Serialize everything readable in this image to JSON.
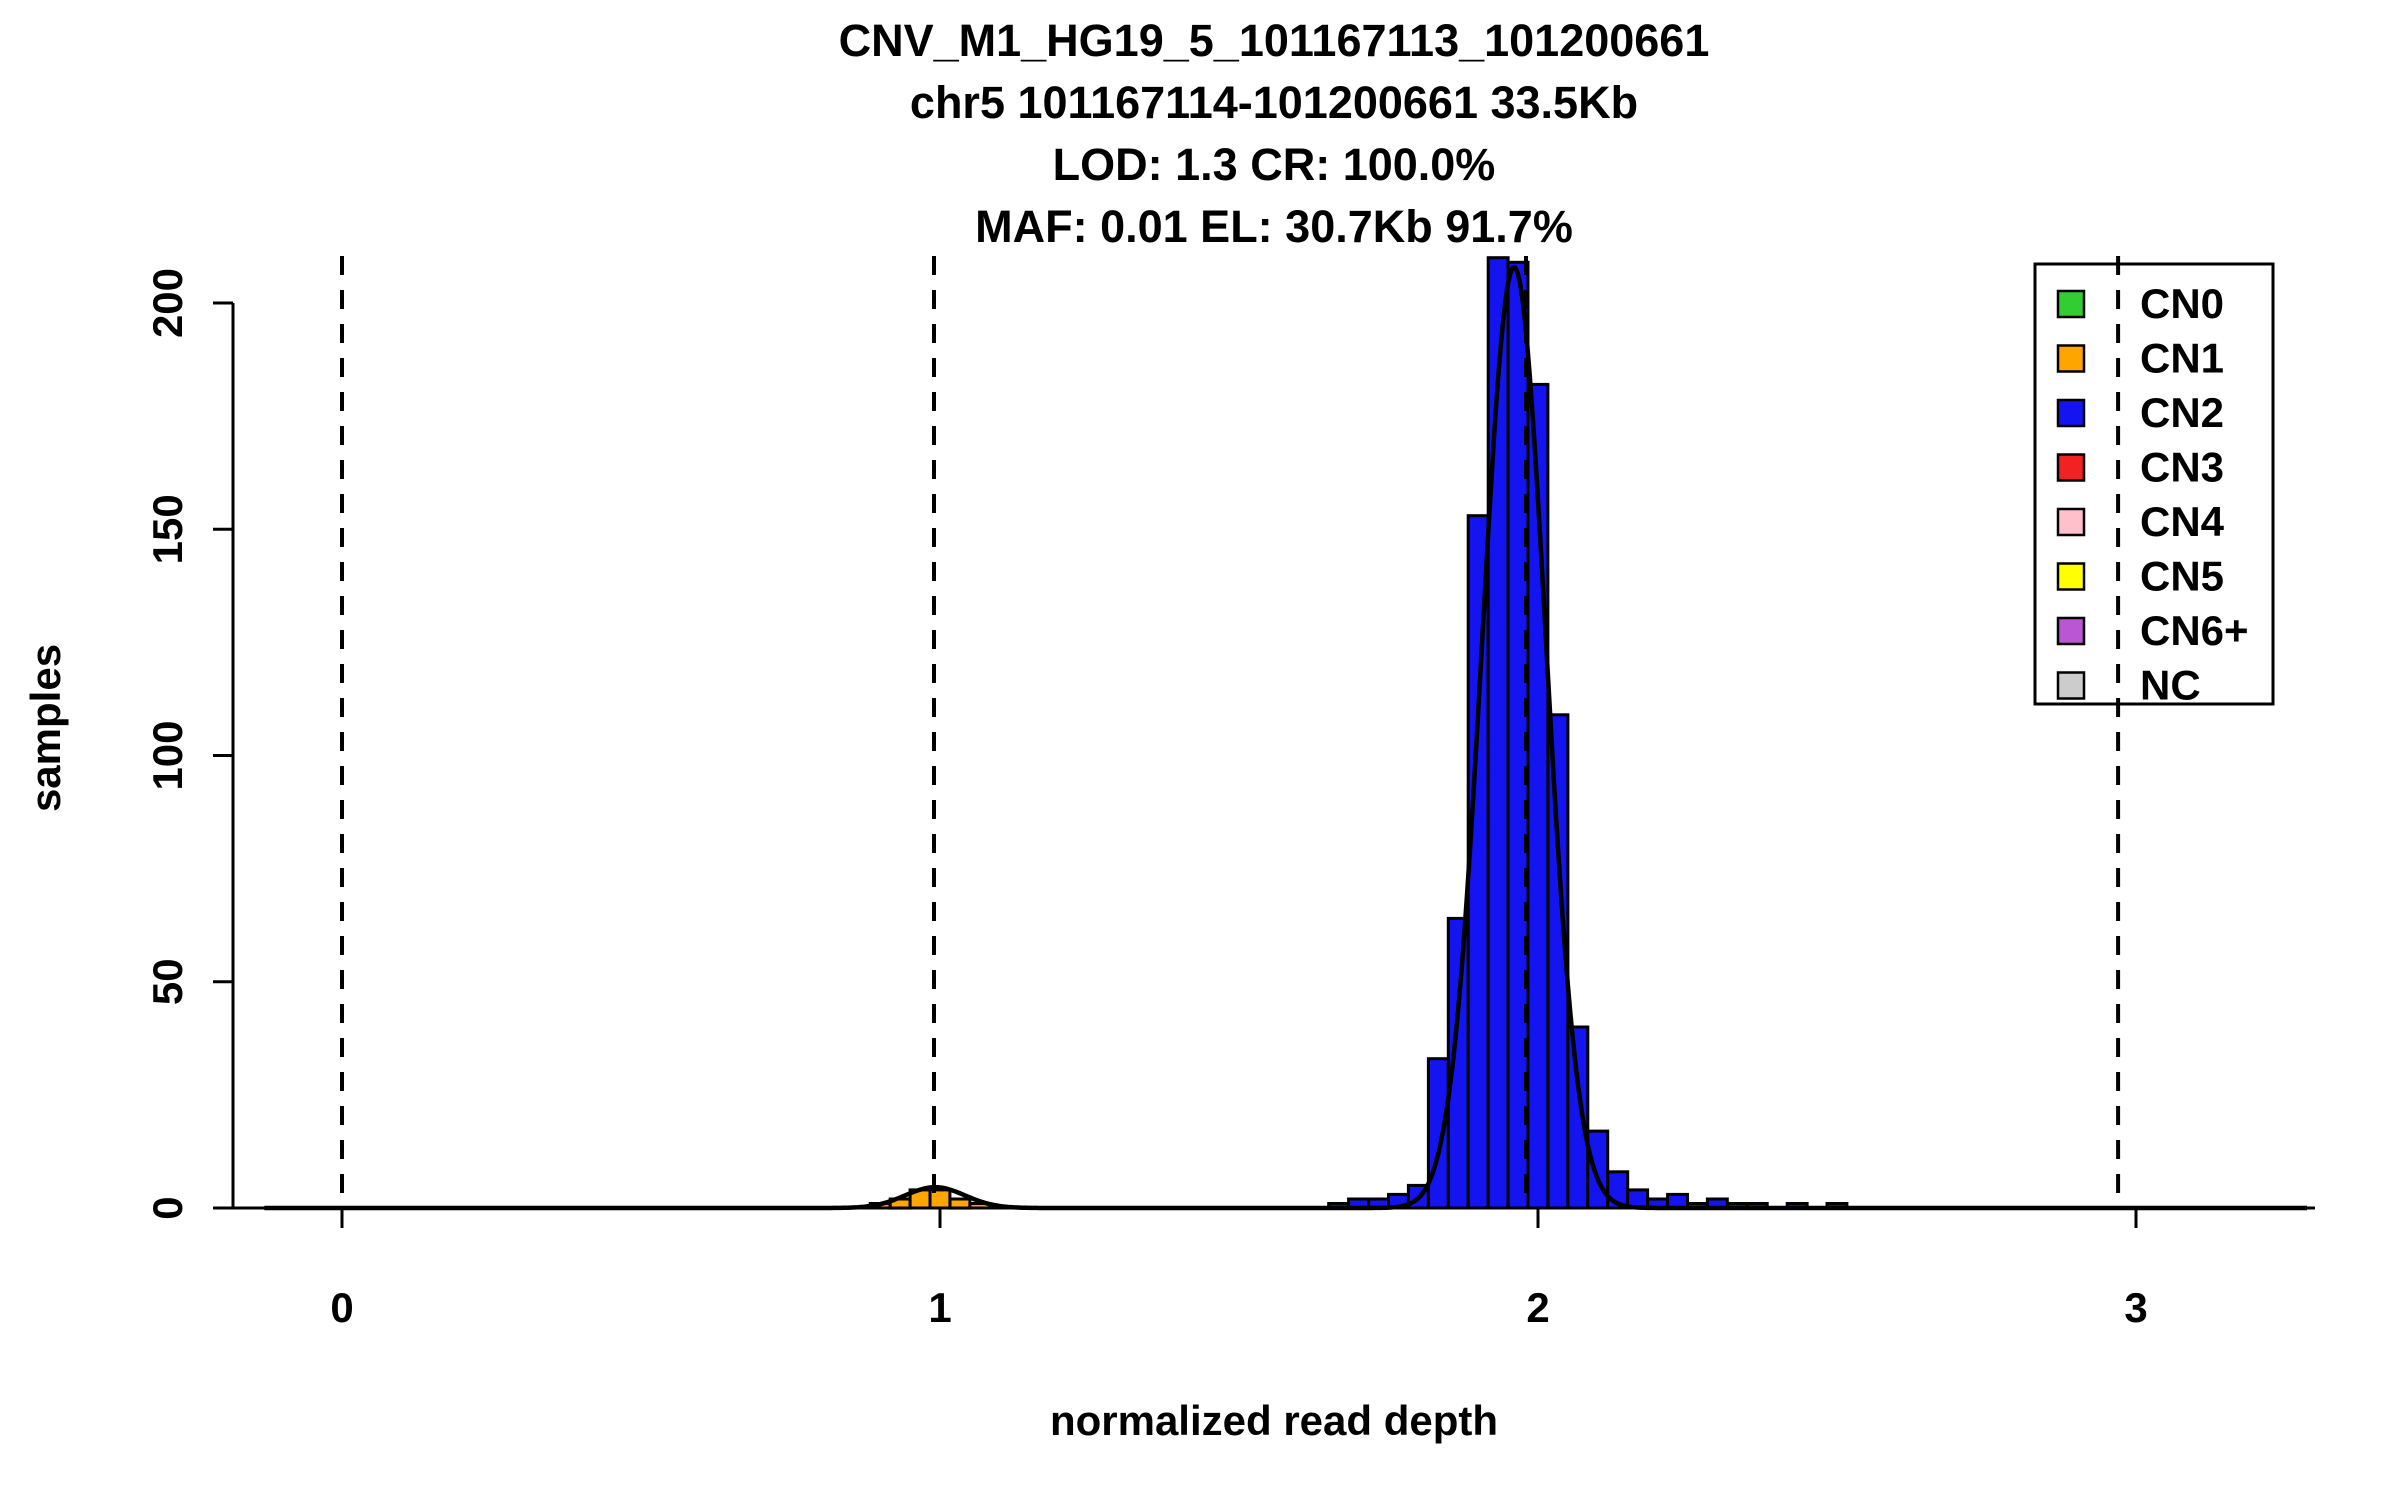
{
  "figure": {
    "title_lines": [
      "CNV_M1_HG19_5_101167113_101200661",
      "chr5 101167114-101200661 33.5Kb",
      "LOD: 1.3 CR: 100.0%",
      "MAF: 0.01 EL: 30.7Kb 91.7%"
    ],
    "xlabel": "normalized read depth",
    "ylabel": "samples"
  },
  "chart_data": {
    "type": "bar",
    "subtype": "histogram-with-density-curve",
    "title": "CNV_M1_HG19_5_101167113_101200661",
    "subtitle_lines": [
      "chr5 101167114-101200661 33.5Kb",
      "LOD: 1.3 CR: 100.0%",
      "MAF: 0.01 EL: 30.7Kb 91.7%"
    ],
    "xlabel": "normalized read depth",
    "ylabel": "samples",
    "xlim": [
      -0.13,
      3.29
    ],
    "ylim": [
      0,
      210
    ],
    "x_ticks": [
      0,
      1,
      2,
      3
    ],
    "y_ticks": [
      0,
      50,
      100,
      150,
      200
    ],
    "grid": false,
    "dashed_lines_x": [
      0,
      0.99,
      1.98,
      2.97
    ],
    "bin_width": 0.0333,
    "series": [
      {
        "name": "CN1",
        "color": "#FFA500",
        "bins": [
          [
            0.8833,
            1
          ],
          [
            0.9167,
            2
          ],
          [
            0.95,
            4
          ],
          [
            0.9833,
            4
          ],
          [
            1.0167,
            2
          ],
          [
            1.05,
            1
          ]
        ]
      },
      {
        "name": "CN2",
        "color": "#1414F0",
        "bins": [
          [
            1.65,
            1
          ],
          [
            1.6833,
            2
          ],
          [
            1.7167,
            2
          ],
          [
            1.75,
            3
          ],
          [
            1.7833,
            5
          ],
          [
            1.8167,
            33
          ],
          [
            1.85,
            64
          ],
          [
            1.8833,
            153
          ],
          [
            1.9167,
            210
          ],
          [
            1.95,
            209
          ],
          [
            1.9833,
            182
          ],
          [
            2.0167,
            109
          ],
          [
            2.05,
            40
          ],
          [
            2.0833,
            17
          ],
          [
            2.1167,
            8
          ],
          [
            2.15,
            4
          ],
          [
            2.1833,
            2
          ],
          [
            2.2167,
            3
          ],
          [
            2.25,
            1
          ],
          [
            2.2833,
            2
          ],
          [
            2.3167,
            1
          ],
          [
            2.35,
            1
          ],
          [
            2.4167,
            1
          ],
          [
            2.4833,
            1
          ]
        ]
      }
    ],
    "density_curve": {
      "color": "#000000",
      "components": [
        {
          "mean": 0.9917,
          "sd": 0.05,
          "amplitude": 4.6
        },
        {
          "mean": 1.96,
          "sd": 0.053,
          "amplitude": 208
        }
      ]
    },
    "legend": {
      "position": "top-right",
      "items": [
        {
          "label": "CN0",
          "color": "#33CC33"
        },
        {
          "label": "CN1",
          "color": "#FFA500"
        },
        {
          "label": "CN2",
          "color": "#1414F0"
        },
        {
          "label": "CN3",
          "color": "#F22222"
        },
        {
          "label": "CN4",
          "color": "#FFC0CB"
        },
        {
          "label": "CN5",
          "color": "#FFFF00"
        },
        {
          "label": "CN6+",
          "color": "#BA55D3"
        },
        {
          "label": "NC",
          "color": "#CCCCCC"
        }
      ]
    }
  }
}
